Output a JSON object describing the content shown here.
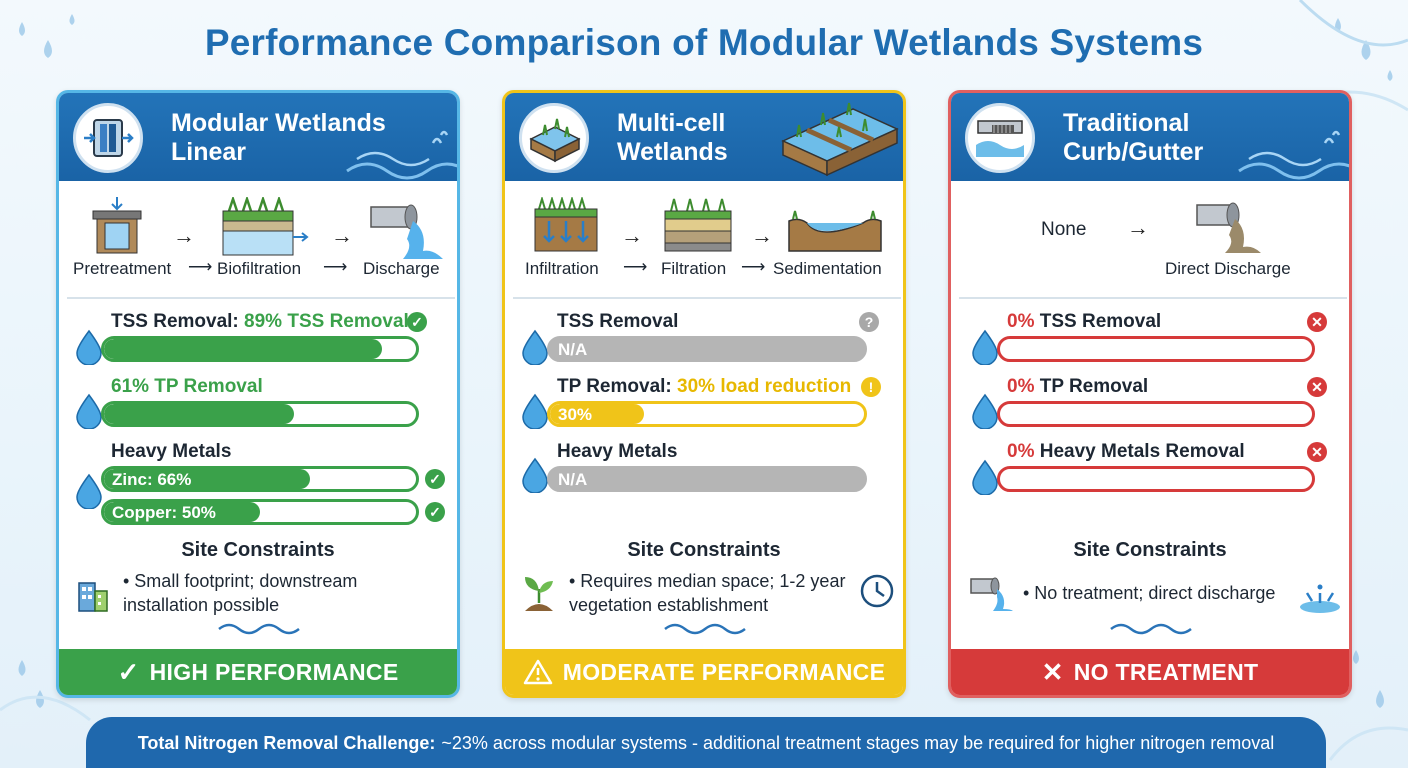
{
  "title": "Performance Comparison of Modular Wetlands Systems",
  "colors": {
    "brand_blue": "#1f6db1",
    "green": "#3aa14a",
    "yellow": "#f0c419",
    "red": "#d63a3a",
    "gray": "#a8a8a8"
  },
  "cards": [
    {
      "heading": "Modular Wetlands Linear",
      "heading_lines": [
        "Modular Wetlands",
        "Linear"
      ],
      "icon": "filter-unit-icon",
      "flow_labels": [
        "Pretreatment",
        "Biofiltration",
        "Discharge"
      ],
      "metrics": {
        "tss_prefix": "TSS Removal: ",
        "tss_value": "89% TSS Removal",
        "tss_fraction": 0.89,
        "tp_label": "61% TP Removal",
        "tp_fraction": 0.61,
        "metals_label": "Heavy Metals",
        "zinc_label": "Zinc: 66%",
        "zinc_fraction": 0.66,
        "copper_label": "Copper: 50%",
        "copper_fraction": 0.5
      },
      "site_title": "Site Constraints",
      "site_text": "• Small footprint; downstream installation possible",
      "rating": "HIGH PERFORMANCE",
      "rating_icon": "check-icon"
    },
    {
      "heading": "Multi-cell Wetlands",
      "heading_lines": [
        "Multi-cell",
        "Wetlands"
      ],
      "icon": "wetland-cells-icon",
      "flow_labels": [
        "Infiltration",
        "Filtration",
        "Sedimentation"
      ],
      "metrics": {
        "tss_label": "TSS Removal",
        "tss_value": "N/A",
        "tp_prefix": "TP Removal: ",
        "tp_value": "30% load reduction",
        "tp_bar_label": "30%",
        "tp_fraction": 0.3,
        "metals_label": "Heavy Metals",
        "metals_value": "N/A"
      },
      "site_title": "Site Constraints",
      "site_text": "• Requires median space; 1-2 year vegetation establishment",
      "rating": "MODERATE PERFORMANCE",
      "rating_icon": "warning-icon"
    },
    {
      "heading": "Traditional Curb/Gutter",
      "heading_lines": [
        "Traditional",
        "Curb/Gutter"
      ],
      "icon": "curb-gutter-icon",
      "flow_labels": [
        "None",
        "Direct Discharge"
      ],
      "metrics": {
        "zero": "0%",
        "tss_label": " TSS Removal",
        "tp_label": " TP Removal",
        "metals_label": " Heavy Metals Removal",
        "fraction": 0
      },
      "site_title": "Site Constraints",
      "site_text": "• No treatment; direct discharge",
      "rating": "NO TREATMENT",
      "rating_icon": "x-icon"
    }
  ],
  "footer": {
    "bold": "Total Nitrogen Removal Challenge:",
    "text": "~23% across modular systems - additional treatment stages may be required for higher nitrogen removal"
  }
}
